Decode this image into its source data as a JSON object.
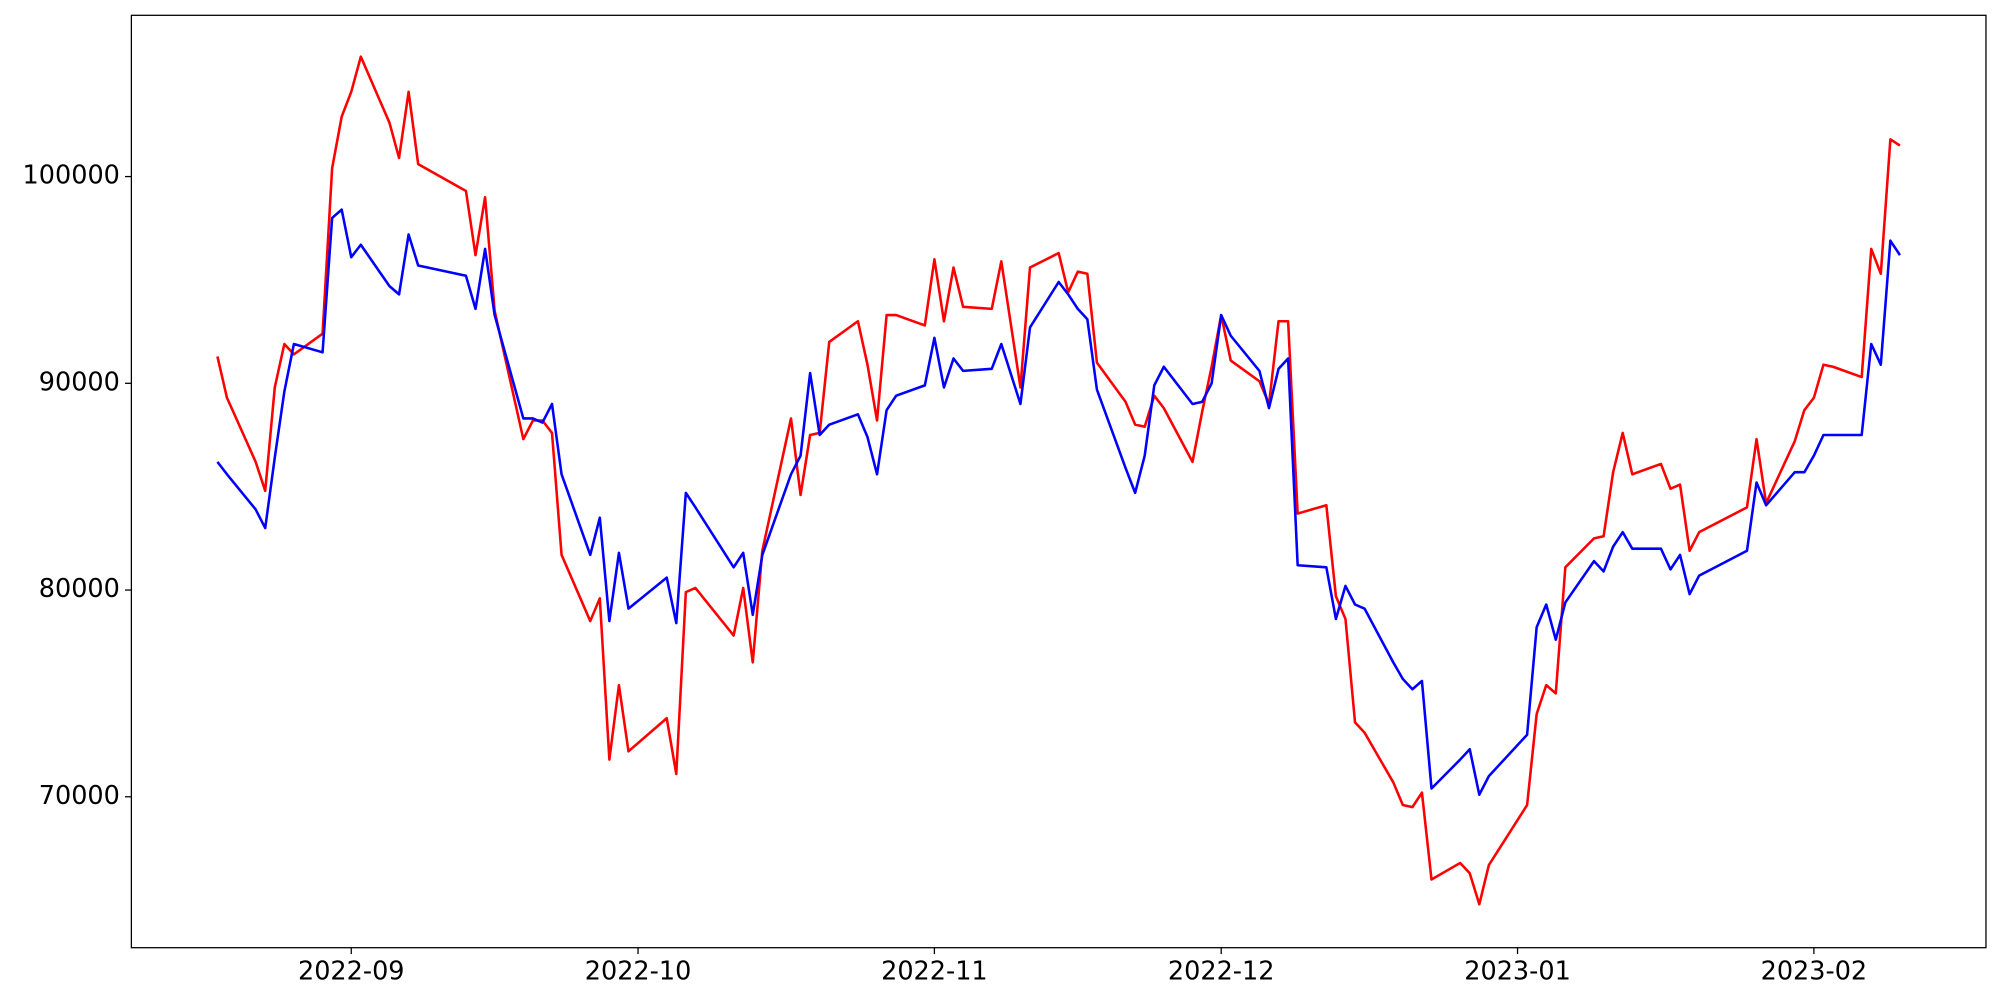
{
  "chart_data": {
    "type": "line",
    "x": [
      "2022-08-18",
      "2022-08-19",
      "2022-08-22",
      "2022-08-23",
      "2022-08-24",
      "2022-08-25",
      "2022-08-26",
      "2022-08-29",
      "2022-08-30",
      "2022-08-31",
      "2022-09-01",
      "2022-09-02",
      "2022-09-05",
      "2022-09-06",
      "2022-09-07",
      "2022-09-08",
      "2022-09-13",
      "2022-09-14",
      "2022-09-15",
      "2022-09-16",
      "2022-09-19",
      "2022-09-20",
      "2022-09-21",
      "2022-09-22",
      "2022-09-23",
      "2022-09-26",
      "2022-09-27",
      "2022-09-28",
      "2022-09-29",
      "2022-09-30",
      "2022-10-04",
      "2022-10-05",
      "2022-10-06",
      "2022-10-07",
      "2022-10-11",
      "2022-10-12",
      "2022-10-13",
      "2022-10-14",
      "2022-10-17",
      "2022-10-18",
      "2022-10-19",
      "2022-10-20",
      "2022-10-21",
      "2022-10-24",
      "2022-10-25",
      "2022-10-26",
      "2022-10-27",
      "2022-10-28",
      "2022-10-31",
      "2022-11-01",
      "2022-11-02",
      "2022-11-03",
      "2022-11-04",
      "2022-11-07",
      "2022-11-08",
      "2022-11-10",
      "2022-11-11",
      "2022-11-14",
      "2022-11-15",
      "2022-11-16",
      "2022-11-17",
      "2022-11-18",
      "2022-11-21",
      "2022-11-22",
      "2022-11-23",
      "2022-11-24",
      "2022-11-25",
      "2022-11-28",
      "2022-11-29",
      "2022-11-30",
      "2022-12-01",
      "2022-12-02",
      "2022-12-05",
      "2022-12-06",
      "2022-12-07",
      "2022-12-08",
      "2022-12-09",
      "2022-12-12",
      "2022-12-13",
      "2022-12-14",
      "2022-12-15",
      "2022-12-16",
      "2022-12-19",
      "2022-12-20",
      "2022-12-21",
      "2022-12-22",
      "2022-12-23",
      "2022-12-26",
      "2022-12-27",
      "2022-12-28",
      "2022-12-29",
      "2023-01-02",
      "2023-01-03",
      "2023-01-04",
      "2023-01-05",
      "2023-01-06",
      "2023-01-09",
      "2023-01-10",
      "2023-01-11",
      "2023-01-12",
      "2023-01-13",
      "2023-01-16",
      "2023-01-17",
      "2023-01-18",
      "2023-01-19",
      "2023-01-20",
      "2023-01-25",
      "2023-01-26",
      "2023-01-27",
      "2023-01-30",
      "2023-01-31",
      "2023-02-01",
      "2023-02-02",
      "2023-02-03",
      "2023-02-06",
      "2023-02-07",
      "2023-02-08",
      "2023-02-09",
      "2023-02-10"
    ],
    "series": [
      {
        "color": "#ff0000",
        "values": [
          91300,
          89300,
          86200,
          84800,
          89800,
          91900,
          91400,
          92400,
          100400,
          102900,
          104100,
          105800,
          102600,
          100900,
          104100,
          100600,
          99300,
          96200,
          99000,
          93500,
          87300,
          88200,
          88200,
          87600,
          81700,
          78500,
          79600,
          71800,
          75400,
          72200,
          73800,
          71100,
          79900,
          80100,
          77800,
          80100,
          76500,
          81900,
          88300,
          84600,
          87500,
          87600,
          92000,
          93000,
          90900,
          88200,
          93300,
          93300,
          92800,
          96000,
          93000,
          95600,
          93700,
          93600,
          95900,
          89800,
          95600,
          96300,
          94400,
          95400,
          95300,
          91000,
          89100,
          88000,
          87900,
          89400,
          88800,
          86200,
          88600,
          90800,
          93300,
          91100,
          90100,
          89000,
          93000,
          93000,
          83700,
          84100,
          79700,
          78600,
          73600,
          73100,
          70700,
          69600,
          69500,
          70200,
          66000,
          66800,
          66300,
          64800,
          66700,
          69600,
          74000,
          75400,
          75000,
          81100,
          82500,
          82600,
          85700,
          87600,
          85600,
          86100,
          84900,
          85100,
          81900,
          82800,
          84000,
          87300,
          84200,
          87200,
          88700,
          89300,
          90900,
          90800,
          90300,
          96500,
          95300,
          101800,
          101500
        ]
      },
      {
        "color": "#0000ff",
        "values": [
          86200,
          85600,
          83900,
          83000,
          86400,
          89600,
          91900,
          91500,
          98000,
          98400,
          96100,
          96700,
          94700,
          94300,
          97200,
          95700,
          95200,
          93600,
          96500,
          93300,
          88300,
          88300,
          88100,
          89000,
          85600,
          81700,
          83500,
          78500,
          81800,
          79100,
          80600,
          78400,
          84700,
          84000,
          81100,
          81800,
          78800,
          81700,
          85600,
          86500,
          90500,
          87500,
          88000,
          88500,
          87400,
          85600,
          88700,
          89400,
          89900,
          92200,
          89800,
          91200,
          90600,
          90700,
          91900,
          89000,
          92700,
          94900,
          94300,
          93600,
          93100,
          89700,
          85900,
          84700,
          86500,
          89900,
          90800,
          89000,
          89100,
          90000,
          93300,
          92300,
          90600,
          88800,
          90700,
          91200,
          81200,
          81100,
          78600,
          80200,
          79300,
          79100,
          76500,
          75700,
          75200,
          75600,
          70400,
          71800,
          72300,
          70100,
          71000,
          73000,
          78200,
          79300,
          77600,
          79400,
          81400,
          80900,
          82100,
          82800,
          82000,
          82000,
          81000,
          81700,
          79800,
          80700,
          81900,
          85200,
          84100,
          85700,
          85700,
          86500,
          87500,
          87500,
          87500,
          91900,
          90900,
          96900,
          96200
        ]
      }
    ],
    "xlim": [
      "2022-08-09",
      "2023-02-19"
    ],
    "xticks": [
      {
        "value": "2022-09-01",
        "label": "2022-09"
      },
      {
        "value": "2022-10-01",
        "label": "2022-10"
      },
      {
        "value": "2022-11-01",
        "label": "2022-11"
      },
      {
        "value": "2022-12-01",
        "label": "2022-12"
      },
      {
        "value": "2023-01-01",
        "label": "2023-01"
      },
      {
        "value": "2023-02-01",
        "label": "2023-02"
      }
    ],
    "ylim": [
      62700,
      107800
    ],
    "yticks": [
      70000,
      80000,
      90000,
      100000
    ],
    "grid": false
  }
}
